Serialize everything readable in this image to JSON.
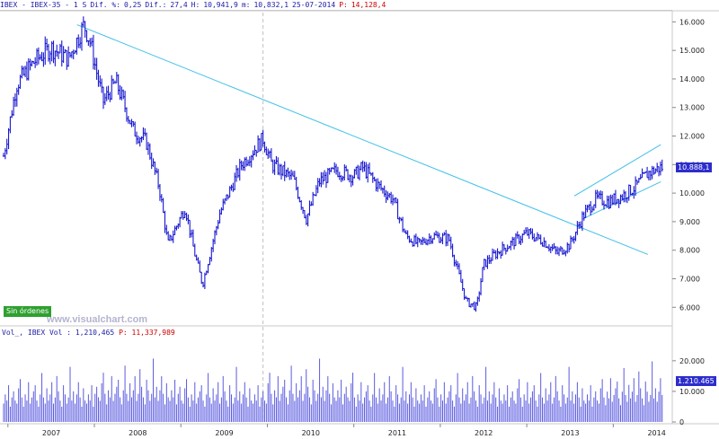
{
  "header": {
    "symbol": "IBEX - IBEX-35 - 1 S",
    "dif_label": "Dif. %:",
    "dif_pct": "0,25",
    "dif_abs_label": "Dif.:",
    "dif_abs": "27,4",
    "high_label": "H:",
    "high": "10,941,9",
    "low_label": "m:",
    "low": "10,832,1",
    "date": "25-07-2014",
    "p_label": "P:",
    "p_value": "14,128,4"
  },
  "badge": "Sin órdenes",
  "watermark": "www.visualchart.com",
  "volume_header": {
    "label": "Vol_, IBEX Vol :",
    "value": "1,210,465",
    "p_label": "P:",
    "p_value": "11,337,989"
  },
  "colors": {
    "price": "#1818d0",
    "volume": "#5a5ae0",
    "trend": "#40c0e8",
    "grid": "#d8d8d8",
    "badge": "#2fa02f"
  },
  "chart_data": [
    {
      "type": "line",
      "name": "IBEX-35 weekly price",
      "x": [
        2006.95,
        2007.1,
        2007.3,
        2007.5,
        2007.7,
        2007.88,
        2007.95,
        2008.1,
        2008.25,
        2008.45,
        2008.6,
        2008.75,
        2008.85,
        2009.05,
        2009.15,
        2009.25,
        2009.45,
        2009.7,
        2009.95,
        2010.05,
        2010.3,
        2010.45,
        2010.6,
        2010.8,
        2011.0,
        2011.1,
        2011.3,
        2011.45,
        2011.6,
        2011.75,
        2011.9,
        2012.1,
        2012.2,
        2012.3,
        2012.42,
        2012.5,
        2012.65,
        2012.9,
        2013.0,
        2013.2,
        2013.35,
        2013.5,
        2013.65,
        2013.8,
        2013.95,
        2014.1,
        2014.25,
        2014.4,
        2014.55
      ],
      "values": [
        11300,
        13800,
        14600,
        15100,
        14700,
        15900,
        15300,
        13200,
        13900,
        12200,
        11800,
        10200,
        8200,
        9500,
        8000,
        6800,
        9300,
        11000,
        11900,
        11000,
        10500,
        9100,
        10400,
        10800,
        10600,
        10900,
        10200,
        9800,
        8500,
        8200,
        8500,
        8400,
        7300,
        6200,
        6000,
        7500,
        7900,
        8400,
        8600,
        8300,
        7900,
        8200,
        9200,
        9800,
        9700,
        9900,
        10200,
        10700,
        10900
      ],
      "xlim": [
        2006.95,
        2014.62
      ],
      "ylim": [
        5600,
        16200
      ],
      "yticks": [
        "6.000",
        "7.000",
        "8.000",
        "9.000",
        "10.000",
        "11.000",
        "12.000",
        "13.000",
        "14.000",
        "15.000",
        "16.000"
      ],
      "ytick_values": [
        6000,
        7000,
        8000,
        9000,
        10000,
        11000,
        12000,
        13000,
        14000,
        15000,
        16000
      ],
      "top_tick": "16.000",
      "last_value": "10.888,1",
      "trendlines": [
        {
          "x": [
            2007.8,
            2014.4
          ],
          "values": [
            15900,
            7850
          ]
        },
        {
          "x": [
            2013.65,
            2014.55
          ],
          "values": [
            9100,
            10400
          ]
        },
        {
          "x": [
            2013.55,
            2014.55
          ],
          "values": [
            9900,
            11700
          ]
        }
      ],
      "vline_x": 2009.95,
      "grid": false,
      "legend": "none"
    },
    {
      "type": "bar",
      "name": "Volume",
      "ylim": [
        0,
        27
      ],
      "yticks": [
        "0",
        "10.000",
        "20.000"
      ],
      "ytick_values": [
        0,
        10,
        20
      ],
      "last_value": "1.210.465",
      "pattern": [
        6,
        9,
        7,
        12,
        5,
        8,
        10,
        7,
        6,
        11,
        14,
        8,
        5,
        9,
        7,
        13,
        6,
        8,
        10,
        12,
        7,
        5,
        9,
        16,
        8,
        6,
        11,
        7,
        9,
        13,
        6,
        8,
        15,
        10,
        7,
        5,
        12,
        9,
        6,
        8,
        18,
        7,
        10,
        6,
        9,
        13,
        8,
        5,
        11,
        7
      ]
    }
  ],
  "x_axis": {
    "labels": [
      "2007",
      "2008",
      "2009",
      "2010",
      "2011",
      "2012",
      "2013",
      "2014"
    ],
    "values": [
      2007.0,
      2008.0,
      2009.0,
      2010.0,
      2011.0,
      2012.0,
      2013.0,
      2014.0
    ]
  }
}
